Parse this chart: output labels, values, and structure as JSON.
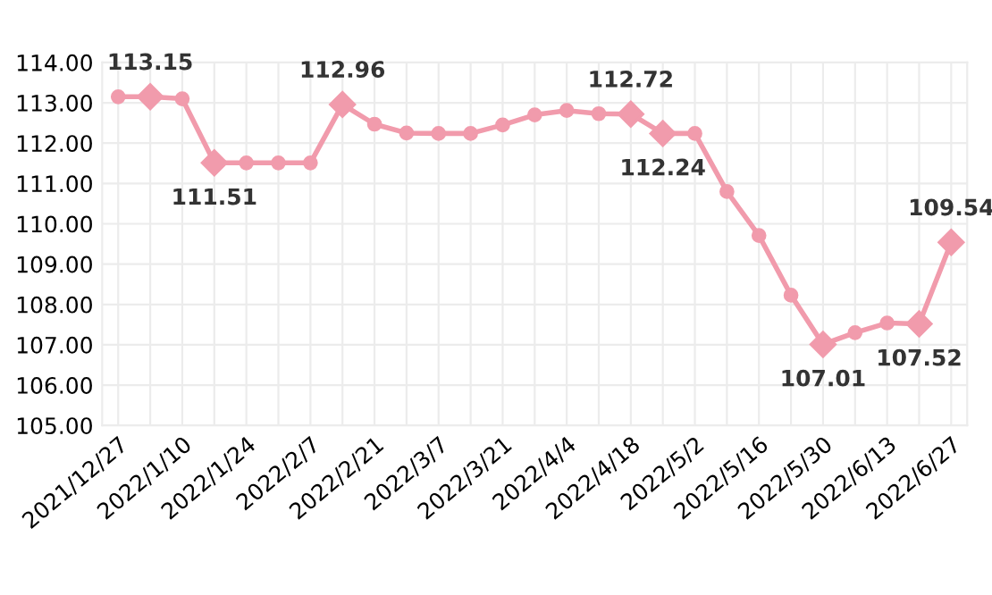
{
  "chart_data": {
    "type": "line",
    "categories": [
      "2021/12/27",
      null,
      "2022/1/10",
      null,
      "2022/1/24",
      null,
      "2022/2/7",
      null,
      "2022/2/21",
      null,
      "2022/3/7",
      null,
      "2022/3/21",
      null,
      "2022/4/4",
      null,
      "2022/4/18",
      null,
      "2022/5/2",
      null,
      "2022/5/16",
      null,
      "2022/5/30",
      null,
      "2022/6/13",
      null,
      "2022/6/27"
    ],
    "series": [
      {
        "color": "#f19bac",
        "values": [
          113.15,
          113.15,
          113.1,
          111.51,
          111.51,
          111.51,
          111.51,
          112.96,
          112.47,
          112.25,
          112.24,
          112.24,
          112.45,
          112.7,
          112.81,
          112.73,
          112.72,
          112.24,
          112.24,
          110.8,
          109.71,
          108.23,
          107.01,
          107.3,
          107.54,
          107.52,
          109.54
        ],
        "value_labels": [
          null,
          "113.15",
          null,
          "111.51",
          null,
          null,
          null,
          "112.96",
          null,
          null,
          null,
          null,
          null,
          null,
          null,
          null,
          "112.72",
          "112.24",
          null,
          null,
          null,
          null,
          "107.01",
          null,
          null,
          "107.52",
          "109.54"
        ]
      }
    ],
    "ylim": [
      105,
      114
    ],
    "yticks": [
      {
        "value": 105,
        "label": "105.00"
      },
      {
        "value": 106,
        "label": "106.00"
      },
      {
        "value": 107,
        "label": "107.00"
      },
      {
        "value": 108,
        "label": "108.00"
      },
      {
        "value": 109,
        "label": "109.00"
      },
      {
        "value": 110,
        "label": "110.00"
      },
      {
        "value": 111,
        "label": "111.00"
      },
      {
        "value": 112,
        "label": "112.00"
      },
      {
        "value": 113,
        "label": "113.00"
      },
      {
        "value": 114,
        "label": "114.00"
      }
    ],
    "grid": true,
    "marker": "circle",
    "line_style": "solid",
    "legend": false
  }
}
